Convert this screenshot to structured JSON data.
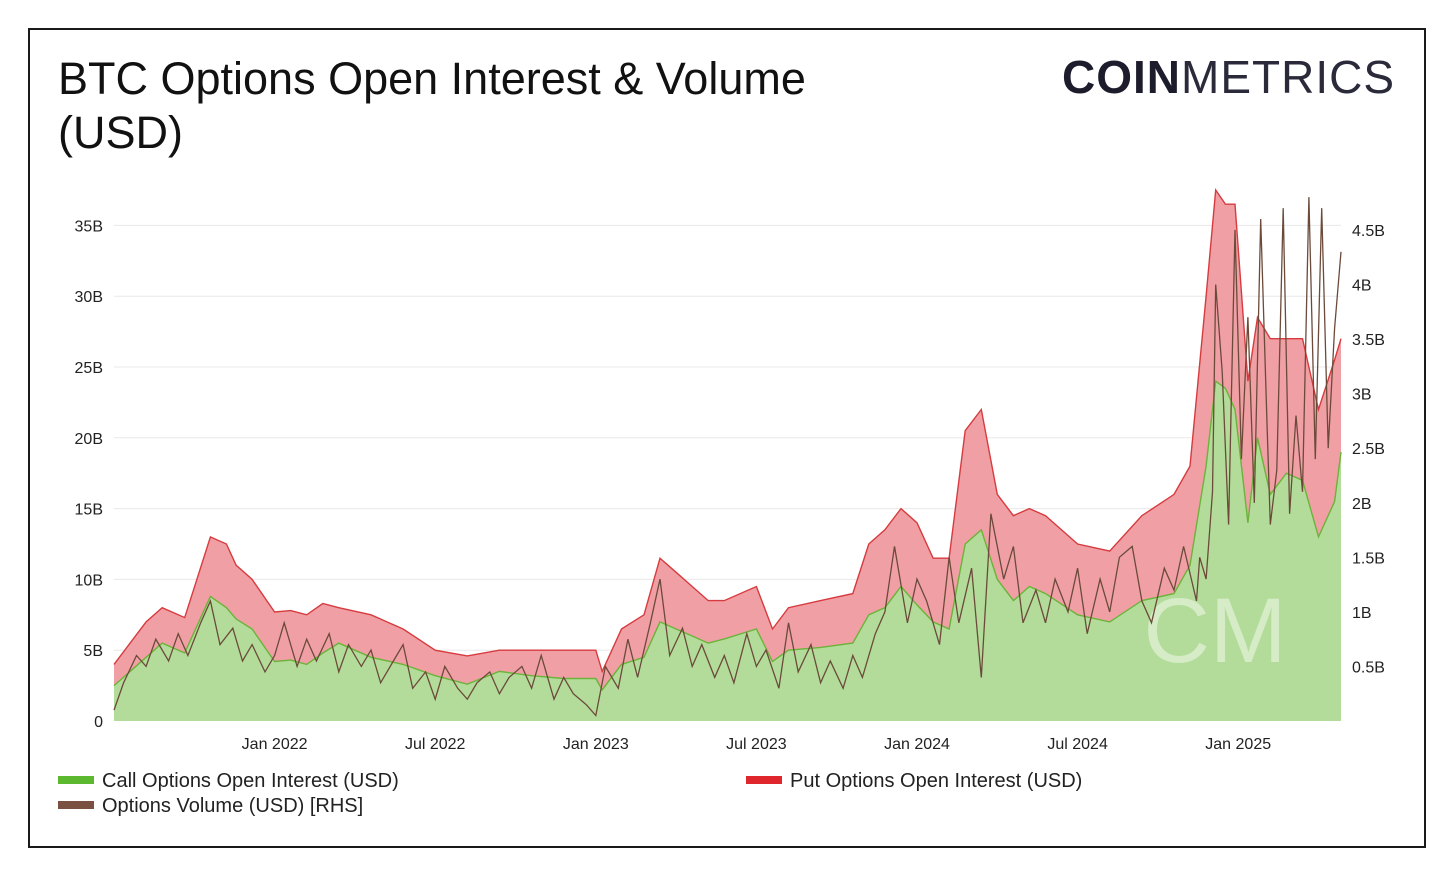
{
  "header": {
    "title": "BTC Options Open Interest & Volume (USD)",
    "logo_bold": "COIN",
    "logo_light": "METRICS",
    "watermark": "CM"
  },
  "colors": {
    "call": "#b3dc9a",
    "call_line": "#6bb33a",
    "put": "#f0a0a4",
    "put_line": "#d63b3f",
    "volume": "#6b4a3a",
    "grid": "#e8e8e8",
    "legend_call": "#5cb82e",
    "legend_put": "#e0262d",
    "legend_volume": "#7a5040"
  },
  "legend": {
    "call": "Call Options Open Interest (USD)",
    "put": "Put Options Open Interest (USD)",
    "volume": "Options Volume (USD) [RHS]"
  },
  "chart_data": {
    "type": "area",
    "title": "BTC Options Open Interest & Volume (USD)",
    "x_range": [
      "2021-07-01",
      "2025-04-30"
    ],
    "x_tick_labels": [
      "Jan 2022",
      "Jul 2022",
      "Jan 2023",
      "Jul 2023",
      "Jan 2024",
      "Jul 2024",
      "Jan 2025"
    ],
    "x_ticks": [
      2022.0,
      2022.5,
      2023.0,
      2023.5,
      2024.0,
      2024.5,
      2025.0
    ],
    "y_left": {
      "min": 0,
      "max": 37.5,
      "unit": "B USD",
      "ticks": [
        0,
        5,
        10,
        15,
        20,
        25,
        30,
        35
      ],
      "tick_labels": [
        "0",
        "5B",
        "10B",
        "15B",
        "20B",
        "25B",
        "30B",
        "35B"
      ]
    },
    "y_right": {
      "min": 0,
      "max": 4.866,
      "unit": "B USD",
      "ticks": [
        0.5,
        1,
        1.5,
        2,
        2.5,
        3,
        3.5,
        4,
        4.5
      ],
      "tick_labels": [
        "0.5B",
        "1B",
        "1.5B",
        "2B",
        "2.5B",
        "3B",
        "3.5B",
        "4B",
        "4.5B"
      ]
    },
    "grid": true,
    "legend_position": "bottom",
    "series": [
      {
        "name": "Call Options Open Interest (USD)",
        "axis": "left",
        "stacked": true,
        "x": [
          2021.5,
          2021.6,
          2021.65,
          2021.72,
          2021.8,
          2021.85,
          2021.88,
          2021.93,
          2022.0,
          2022.05,
          2022.1,
          2022.15,
          2022.2,
          2022.3,
          2022.4,
          2022.5,
          2022.6,
          2022.7,
          2022.8,
          2022.9,
          2023.0,
          2023.02,
          2023.08,
          2023.15,
          2023.2,
          2023.25,
          2023.3,
          2023.35,
          2023.4,
          2023.5,
          2023.55,
          2023.6,
          2023.7,
          2023.8,
          2023.85,
          2023.9,
          2023.95,
          2024.0,
          2024.05,
          2024.1,
          2024.15,
          2024.2,
          2024.25,
          2024.3,
          2024.35,
          2024.4,
          2024.5,
          2024.6,
          2024.7,
          2024.8,
          2024.85,
          2024.9,
          2024.93,
          2024.96,
          2024.99,
          2025.03,
          2025.06,
          2025.1,
          2025.15,
          2025.2,
          2025.25,
          2025.3,
          2025.32
        ],
        "values": [
          2.5,
          4.5,
          5.5,
          4.8,
          8.8,
          8.0,
          7.2,
          6.5,
          4.2,
          4.3,
          4.0,
          4.8,
          5.5,
          4.5,
          4.0,
          3.2,
          2.6,
          3.5,
          3.2,
          3.0,
          3.0,
          2.2,
          4.0,
          4.5,
          7.0,
          6.5,
          6.0,
          5.5,
          5.8,
          6.5,
          4.2,
          5.0,
          5.2,
          5.5,
          7.5,
          8.0,
          9.5,
          8.2,
          7.0,
          6.5,
          12.5,
          13.5,
          10.0,
          8.5,
          9.5,
          9.0,
          7.5,
          7.0,
          8.5,
          9.0,
          11.0,
          18.0,
          24.0,
          23.5,
          22.0,
          14.0,
          20.0,
          16.0,
          17.5,
          17.0,
          13.0,
          15.5,
          19.0
        ]
      },
      {
        "name": "Put Options Open Interest (USD)",
        "axis": "left",
        "stacked": true,
        "x": [
          2021.5,
          2021.6,
          2021.65,
          2021.72,
          2021.8,
          2021.85,
          2021.88,
          2021.93,
          2022.0,
          2022.05,
          2022.1,
          2022.15,
          2022.2,
          2022.3,
          2022.4,
          2022.5,
          2022.6,
          2022.7,
          2022.8,
          2022.9,
          2023.0,
          2023.02,
          2023.08,
          2023.15,
          2023.2,
          2023.25,
          2023.3,
          2023.35,
          2023.4,
          2023.5,
          2023.55,
          2023.6,
          2023.7,
          2023.8,
          2023.85,
          2023.9,
          2023.95,
          2024.0,
          2024.05,
          2024.1,
          2024.15,
          2024.2,
          2024.25,
          2024.3,
          2024.35,
          2024.4,
          2024.5,
          2024.6,
          2024.7,
          2024.8,
          2024.85,
          2024.9,
          2024.93,
          2024.96,
          2024.99,
          2025.03,
          2025.06,
          2025.1,
          2025.15,
          2025.2,
          2025.25,
          2025.3,
          2025.32
        ],
        "values": [
          1.5,
          2.5,
          2.5,
          2.5,
          4.2,
          4.5,
          3.8,
          3.5,
          3.5,
          3.5,
          3.5,
          3.5,
          2.5,
          3.0,
          2.5,
          1.8,
          2.0,
          1.5,
          1.8,
          2.0,
          2.0,
          1.3,
          2.5,
          3.0,
          4.5,
          4.0,
          3.5,
          3.0,
          2.7,
          3.0,
          2.3,
          3.0,
          3.3,
          3.5,
          5.0,
          5.5,
          5.5,
          5.8,
          4.5,
          5.0,
          8.0,
          8.5,
          6.0,
          6.0,
          5.5,
          5.5,
          5.0,
          5.0,
          6.0,
          7.0,
          7.0,
          12.0,
          13.5,
          13.0,
          14.5,
          10.0,
          8.5,
          11.0,
          9.5,
          10.0,
          9.0,
          10.0,
          8.0
        ]
      },
      {
        "name": "Options Volume (USD) [RHS]",
        "axis": "right",
        "stacked": false,
        "x": [
          2021.5,
          2021.53,
          2021.57,
          2021.6,
          2021.63,
          2021.67,
          2021.7,
          2021.73,
          2021.77,
          2021.8,
          2021.83,
          2021.87,
          2021.9,
          2021.93,
          2021.97,
          2022.0,
          2022.03,
          2022.07,
          2022.1,
          2022.13,
          2022.17,
          2022.2,
          2022.23,
          2022.27,
          2022.3,
          2022.33,
          2022.37,
          2022.4,
          2022.43,
          2022.47,
          2022.5,
          2022.53,
          2022.57,
          2022.6,
          2022.63,
          2022.67,
          2022.7,
          2022.73,
          2022.77,
          2022.8,
          2022.83,
          2022.87,
          2022.9,
          2022.93,
          2022.97,
          2023.0,
          2023.03,
          2023.07,
          2023.1,
          2023.13,
          2023.17,
          2023.2,
          2023.23,
          2023.27,
          2023.3,
          2023.33,
          2023.37,
          2023.4,
          2023.43,
          2023.47,
          2023.5,
          2023.53,
          2023.57,
          2023.6,
          2023.63,
          2023.67,
          2023.7,
          2023.73,
          2023.77,
          2023.8,
          2023.83,
          2023.87,
          2023.9,
          2023.93,
          2023.97,
          2024.0,
          2024.03,
          2024.07,
          2024.1,
          2024.13,
          2024.17,
          2024.2,
          2024.23,
          2024.27,
          2024.3,
          2024.33,
          2024.37,
          2024.4,
          2024.43,
          2024.47,
          2024.5,
          2024.53,
          2024.57,
          2024.6,
          2024.63,
          2024.67,
          2024.7,
          2024.73,
          2024.77,
          2024.8,
          2024.83,
          2024.87,
          2024.88,
          2024.9,
          2024.92,
          2024.93,
          2024.95,
          2024.97,
          2024.99,
          2025.01,
          2025.03,
          2025.05,
          2025.07,
          2025.09,
          2025.1,
          2025.12,
          2025.14,
          2025.16,
          2025.18,
          2025.2,
          2025.22,
          2025.24,
          2025.26,
          2025.28,
          2025.3,
          2025.32
        ],
        "values": [
          0.1,
          0.35,
          0.6,
          0.5,
          0.75,
          0.55,
          0.8,
          0.6,
          0.9,
          1.1,
          0.7,
          0.85,
          0.55,
          0.7,
          0.45,
          0.6,
          0.9,
          0.5,
          0.75,
          0.55,
          0.8,
          0.45,
          0.7,
          0.5,
          0.65,
          0.35,
          0.55,
          0.7,
          0.3,
          0.45,
          0.2,
          0.5,
          0.3,
          0.2,
          0.35,
          0.45,
          0.25,
          0.4,
          0.5,
          0.3,
          0.6,
          0.2,
          0.4,
          0.25,
          0.15,
          0.05,
          0.5,
          0.3,
          0.75,
          0.4,
          0.9,
          1.3,
          0.6,
          0.85,
          0.5,
          0.7,
          0.4,
          0.6,
          0.35,
          0.8,
          0.5,
          0.65,
          0.3,
          0.9,
          0.45,
          0.7,
          0.35,
          0.55,
          0.3,
          0.6,
          0.4,
          0.8,
          1.0,
          1.6,
          0.9,
          1.3,
          1.1,
          0.7,
          1.5,
          0.9,
          1.4,
          0.4,
          1.9,
          1.3,
          1.6,
          0.9,
          1.2,
          0.9,
          1.3,
          1.0,
          1.4,
          0.8,
          1.3,
          1.0,
          1.5,
          1.6,
          1.1,
          0.9,
          1.4,
          1.2,
          1.6,
          1.1,
          1.5,
          1.3,
          2.1,
          4.0,
          3.2,
          1.8,
          4.5,
          2.4,
          3.7,
          2.0,
          4.6,
          2.7,
          1.8,
          2.3,
          4.7,
          1.9,
          2.8,
          2.1,
          4.8,
          2.4,
          4.7,
          2.5,
          3.6,
          4.3
        ]
      }
    ]
  }
}
